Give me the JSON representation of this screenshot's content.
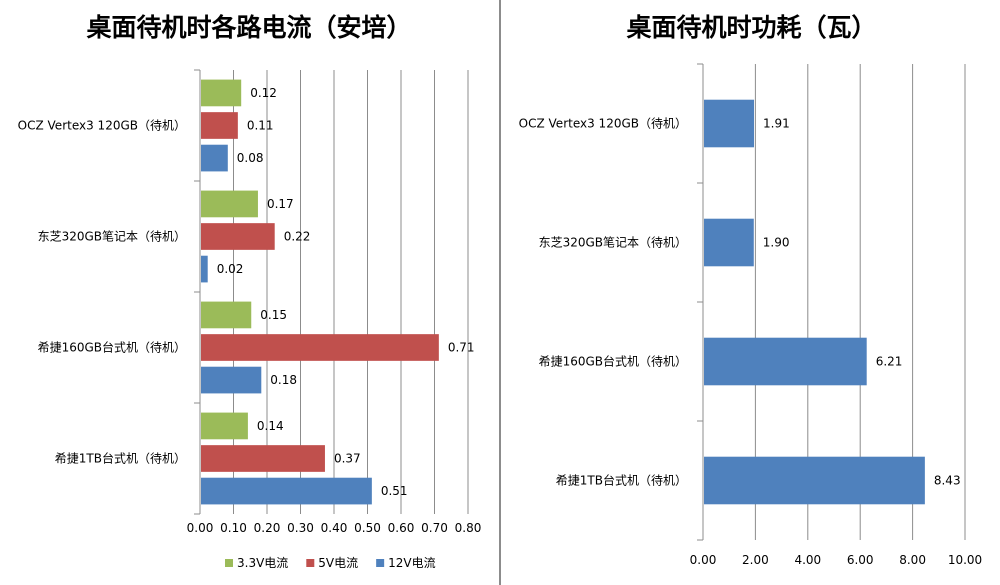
{
  "chart_data": [
    {
      "type": "bar",
      "orientation": "horizontal",
      "title": "桌面待机时各路电流（安培）",
      "categories": [
        "OCZ Vertex3 120GB（待机）",
        "东芝320GB笔记本（待机）",
        "希捷160GB台式机（待机）",
        "希捷1TB台式机（待机）"
      ],
      "series": [
        {
          "name": "3.3V电流",
          "color": "#9bbb59",
          "values": [
            0.12,
            0.17,
            0.15,
            0.14
          ],
          "labels": [
            "0.12",
            "0.17",
            "0.15",
            "0.14"
          ]
        },
        {
          "name": "5V电流",
          "color": "#c0504d",
          "values": [
            0.11,
            0.22,
            0.71,
            0.37
          ],
          "labels": [
            "0.11",
            "0.22",
            "0.71",
            "0.37"
          ]
        },
        {
          "name": "12V电流",
          "color": "#4f81bd",
          "values": [
            0.08,
            0.02,
            0.18,
            0.51
          ],
          "labels": [
            "0.08",
            "0.02",
            "0.18",
            "0.51"
          ]
        }
      ],
      "xlim": [
        0,
        0.8
      ],
      "xticks": [
        "0.00",
        "0.10",
        "0.20",
        "0.30",
        "0.40",
        "0.50",
        "0.60",
        "0.70",
        "0.80"
      ],
      "grid": true,
      "legend": "bottom"
    },
    {
      "type": "bar",
      "orientation": "horizontal",
      "title": "桌面待机时功耗（瓦）",
      "categories": [
        "OCZ Vertex3 120GB（待机）",
        "东芝320GB笔记本（待机）",
        "希捷160GB台式机（待机）",
        "希捷1TB台式机（待机）"
      ],
      "series": [
        {
          "color": "#4f81bd",
          "values": [
            1.91,
            1.9,
            6.21,
            8.43
          ],
          "labels": [
            "1.91",
            "1.90",
            "6.21",
            "8.43"
          ]
        }
      ],
      "xlim": [
        0,
        10
      ],
      "xticks": [
        "0.00",
        "2.00",
        "4.00",
        "6.00",
        "8.00",
        "10.00"
      ],
      "grid": true,
      "legend": "none"
    }
  ]
}
